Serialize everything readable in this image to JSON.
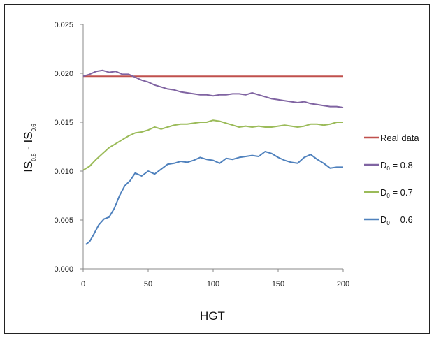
{
  "chart_data": {
    "type": "line",
    "xlabel": "HGT",
    "ylabel": {
      "main": "IS",
      "sub1": "0.8",
      "mid": " - IS",
      "sub2": "0.6"
    },
    "xlim": [
      0,
      200
    ],
    "ylim": [
      0,
      0.025
    ],
    "x_ticks": [
      "0",
      "50",
      "100",
      "150",
      "200"
    ],
    "y_ticks": [
      "0.000",
      "0.005",
      "0.010",
      "0.015",
      "0.020",
      "0.025"
    ],
    "grid": false,
    "legend_position": "right",
    "series": [
      {
        "name": "Real data",
        "legend": {
          "prefix": "Real data",
          "sub": "",
          "suffix": ""
        },
        "color": "#c0504d",
        "points": [
          [
            0,
            0.0197
          ],
          [
            200,
            0.0197
          ]
        ]
      },
      {
        "name": "D0 = 0.8",
        "legend": {
          "prefix": "D",
          "sub": "0",
          "suffix": " = 0.8"
        },
        "color": "#8064a2",
        "points": [
          [
            0,
            0.0197
          ],
          [
            5,
            0.0199
          ],
          [
            10,
            0.0202
          ],
          [
            15,
            0.0203
          ],
          [
            20,
            0.0201
          ],
          [
            25,
            0.0202
          ],
          [
            30,
            0.0199
          ],
          [
            35,
            0.0199
          ],
          [
            40,
            0.0196
          ],
          [
            45,
            0.0193
          ],
          [
            50,
            0.0191
          ],
          [
            55,
            0.0188
          ],
          [
            60,
            0.0186
          ],
          [
            65,
            0.0184
          ],
          [
            70,
            0.0183
          ],
          [
            75,
            0.0181
          ],
          [
            80,
            0.018
          ],
          [
            85,
            0.0179
          ],
          [
            90,
            0.0178
          ],
          [
            95,
            0.0178
          ],
          [
            100,
            0.0177
          ],
          [
            105,
            0.0178
          ],
          [
            110,
            0.0178
          ],
          [
            115,
            0.0179
          ],
          [
            120,
            0.0179
          ],
          [
            125,
            0.0178
          ],
          [
            130,
            0.018
          ],
          [
            135,
            0.0178
          ],
          [
            140,
            0.0176
          ],
          [
            145,
            0.0174
          ],
          [
            150,
            0.0173
          ],
          [
            155,
            0.0172
          ],
          [
            160,
            0.0171
          ],
          [
            165,
            0.017
          ],
          [
            170,
            0.0171
          ],
          [
            175,
            0.0169
          ],
          [
            180,
            0.0168
          ],
          [
            185,
            0.0167
          ],
          [
            190,
            0.0166
          ],
          [
            195,
            0.0166
          ],
          [
            200,
            0.0165
          ]
        ]
      },
      {
        "name": "D0 = 0.7",
        "legend": {
          "prefix": "D",
          "sub": "0",
          "suffix": " = 0.7"
        },
        "color": "#9bbb59",
        "points": [
          [
            0,
            0.0101
          ],
          [
            5,
            0.0105
          ],
          [
            10,
            0.0112
          ],
          [
            15,
            0.0118
          ],
          [
            20,
            0.0124
          ],
          [
            25,
            0.0128
          ],
          [
            30,
            0.0132
          ],
          [
            35,
            0.0136
          ],
          [
            40,
            0.0139
          ],
          [
            45,
            0.014
          ],
          [
            50,
            0.0142
          ],
          [
            55,
            0.0145
          ],
          [
            60,
            0.0143
          ],
          [
            65,
            0.0145
          ],
          [
            70,
            0.0147
          ],
          [
            75,
            0.0148
          ],
          [
            80,
            0.0148
          ],
          [
            85,
            0.0149
          ],
          [
            90,
            0.015
          ],
          [
            95,
            0.015
          ],
          [
            100,
            0.0152
          ],
          [
            105,
            0.0151
          ],
          [
            110,
            0.0149
          ],
          [
            115,
            0.0147
          ],
          [
            120,
            0.0145
          ],
          [
            125,
            0.0146
          ],
          [
            130,
            0.0145
          ],
          [
            135,
            0.0146
          ],
          [
            140,
            0.0145
          ],
          [
            145,
            0.0145
          ],
          [
            150,
            0.0146
          ],
          [
            155,
            0.0147
          ],
          [
            160,
            0.0146
          ],
          [
            165,
            0.0145
          ],
          [
            170,
            0.0146
          ],
          [
            175,
            0.0148
          ],
          [
            180,
            0.0148
          ],
          [
            185,
            0.0147
          ],
          [
            190,
            0.0148
          ],
          [
            195,
            0.015
          ],
          [
            200,
            0.015
          ]
        ]
      },
      {
        "name": "D0 = 0.6",
        "legend": {
          "prefix": "D",
          "sub": "0",
          "suffix": " = 0.6"
        },
        "color": "#4f81bd",
        "points": [
          [
            2,
            0.0025
          ],
          [
            5,
            0.0028
          ],
          [
            8,
            0.0035
          ],
          [
            12,
            0.0045
          ],
          [
            16,
            0.0051
          ],
          [
            20,
            0.0053
          ],
          [
            24,
            0.0062
          ],
          [
            28,
            0.0075
          ],
          [
            32,
            0.0085
          ],
          [
            36,
            0.009
          ],
          [
            40,
            0.0098
          ],
          [
            45,
            0.0095
          ],
          [
            50,
            0.01
          ],
          [
            55,
            0.0097
          ],
          [
            60,
            0.0102
          ],
          [
            65,
            0.0107
          ],
          [
            70,
            0.0108
          ],
          [
            75,
            0.011
          ],
          [
            80,
            0.0109
          ],
          [
            85,
            0.0111
          ],
          [
            90,
            0.0114
          ],
          [
            95,
            0.0112
          ],
          [
            100,
            0.0111
          ],
          [
            105,
            0.0108
          ],
          [
            110,
            0.0113
          ],
          [
            115,
            0.0112
          ],
          [
            120,
            0.0114
          ],
          [
            125,
            0.0115
          ],
          [
            130,
            0.0116
          ],
          [
            135,
            0.0115
          ],
          [
            140,
            0.012
          ],
          [
            145,
            0.0118
          ],
          [
            150,
            0.0114
          ],
          [
            155,
            0.0111
          ],
          [
            160,
            0.0109
          ],
          [
            165,
            0.0108
          ],
          [
            170,
            0.0114
          ],
          [
            175,
            0.0117
          ],
          [
            180,
            0.0112
          ],
          [
            185,
            0.0108
          ],
          [
            190,
            0.0103
          ],
          [
            195,
            0.0104
          ],
          [
            200,
            0.0104
          ]
        ]
      }
    ]
  }
}
